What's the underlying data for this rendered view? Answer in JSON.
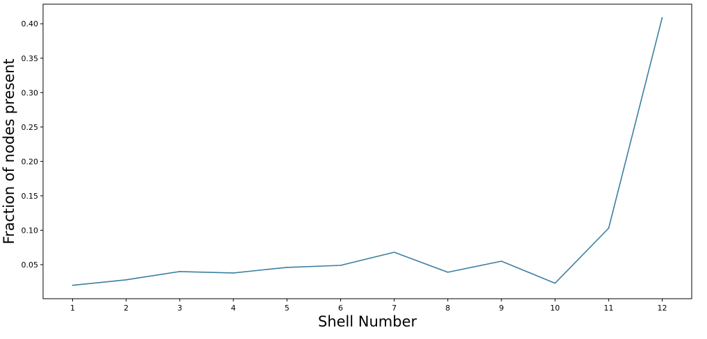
{
  "chart_data": {
    "type": "line",
    "title": "",
    "xlabel": "Shell Number",
    "ylabel": "Fraction of nodes present",
    "x": [
      1,
      2,
      3,
      4,
      5,
      6,
      7,
      8,
      9,
      10,
      11,
      12
    ],
    "series": [
      {
        "values": [
          0.02,
          0.028,
          0.04,
          0.038,
          0.046,
          0.049,
          0.068,
          0.039,
          0.055,
          0.023,
          0.103,
          0.409
        ],
        "color": "#3b7ea1"
      }
    ],
    "xticks": [
      "1",
      "2",
      "3",
      "4",
      "5",
      "6",
      "7",
      "8",
      "9",
      "10",
      "11",
      "12"
    ],
    "yticks": [
      0.05,
      0.1,
      0.15,
      0.2,
      0.25,
      0.3,
      0.35,
      0.4
    ],
    "ytick_labels": [
      "0.05",
      "0.10",
      "0.15",
      "0.20",
      "0.25",
      "0.30",
      "0.35",
      "0.40"
    ],
    "xlim": [
      0.45,
      12.55
    ],
    "ylim": [
      0.0005,
      0.4285
    ],
    "grid": false,
    "legend": "none"
  }
}
